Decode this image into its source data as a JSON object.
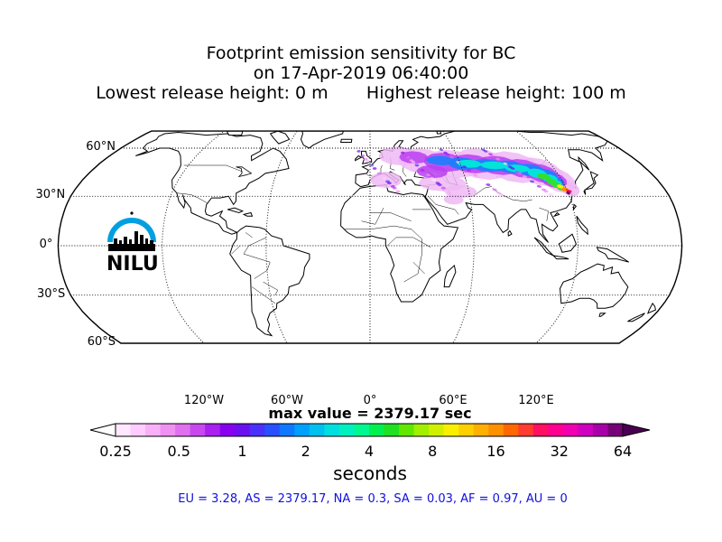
{
  "title": {
    "line1": "Footprint emission sensitivity for BC",
    "line2": "on 17-Apr-2019 06:40:00",
    "line3": "Lowest release height: 0 m       Highest release height: 100 m"
  },
  "map": {
    "projection": "Robinson",
    "lat_labels": [
      "60°N",
      "30°N",
      "0°",
      "30°S",
      "60°S"
    ],
    "lat_values": [
      60,
      30,
      0,
      -30,
      -60
    ],
    "lon_labels": [
      "120°W",
      "60°W",
      "0°",
      "60°E",
      "120°E"
    ],
    "lon_values": [
      -120,
      -60,
      0,
      60,
      120
    ],
    "gridline_style": "dotted",
    "footprint_region": "Northern China, Mongolia, Kazakhstan, Central Asia to Eastern Europe",
    "logo_text": "NILU"
  },
  "max_value": "max value = 2379.17 sec",
  "colorbar": {
    "ticks": [
      "0.25",
      "0.5",
      "1",
      "2",
      "4",
      "8",
      "16",
      "32",
      "64"
    ],
    "unit": "seconds",
    "colors": [
      "#ffe8ff",
      "#ffccff",
      "#f8b0f8",
      "#f090f0",
      "#e070ee",
      "#c848f0",
      "#aa20f0",
      "#8800f0",
      "#6a10f0",
      "#4a30f8",
      "#2850ff",
      "#1078ff",
      "#00a0ff",
      "#00c0f0",
      "#00dfe0",
      "#00f0c0",
      "#00f890",
      "#00f050",
      "#20e020",
      "#60e800",
      "#a0f000",
      "#d0f000",
      "#f8f000",
      "#ffd000",
      "#ffb000",
      "#ff9000",
      "#ff6800",
      "#ff3c30",
      "#ff1060",
      "#ff0090",
      "#f000b0",
      "#d000c0",
      "#a800a8",
      "#780078"
    ]
  },
  "summary": "EU = 3.28,  AS = 2379.17,  NA = 0.3,  SA = 0.03,  AF = 0.97,  AU = 0"
}
